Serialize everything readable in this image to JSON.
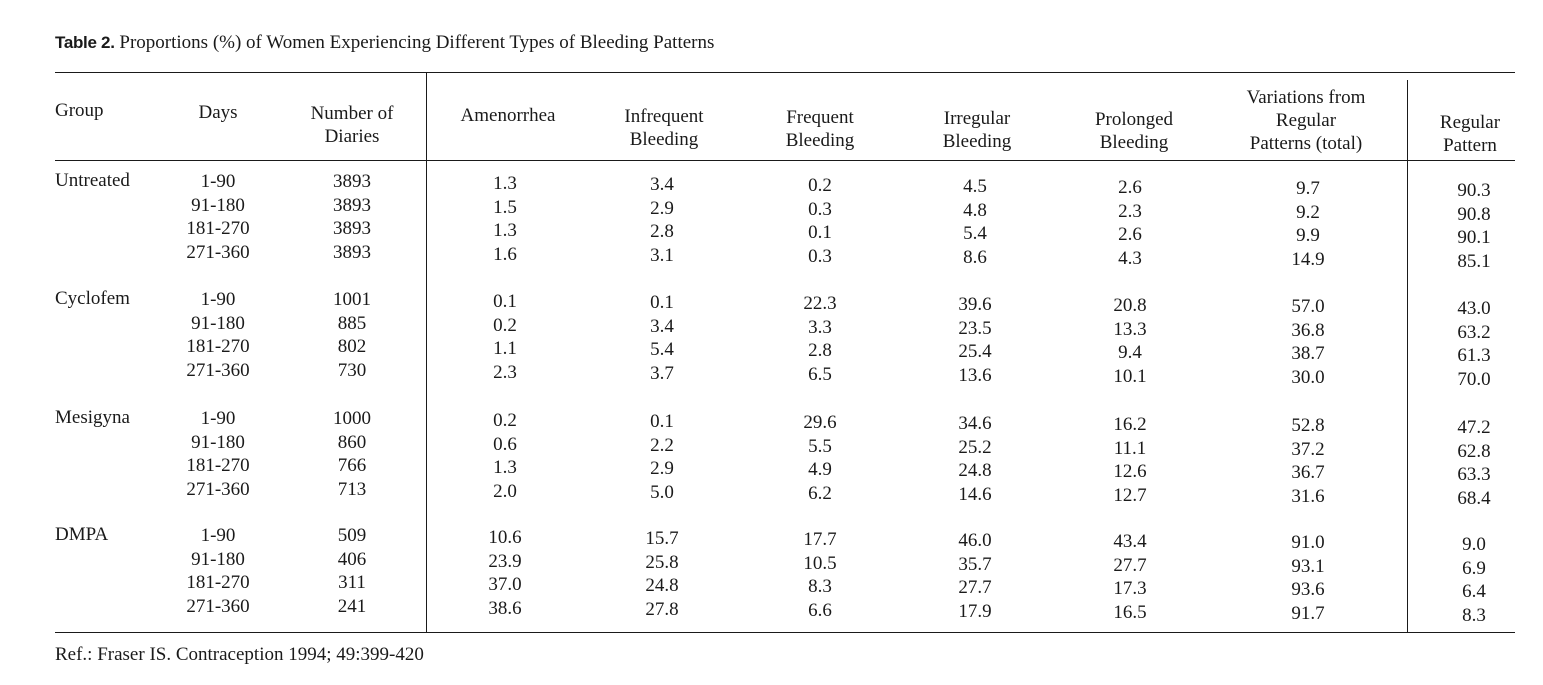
{
  "title": {
    "label": "Table 2.",
    "text": " Proportions (%) of Women Experiencing Different Types of Bleeding Patterns"
  },
  "columns": [
    {
      "key": "group",
      "label": "Group"
    },
    {
      "key": "days",
      "label": "Days"
    },
    {
      "key": "diaries",
      "label": "Number of\nDiaries"
    },
    {
      "key": "amenorrhea",
      "label": "Amenorrhea"
    },
    {
      "key": "infrequent",
      "label": "Infrequent\nBleeding"
    },
    {
      "key": "frequent",
      "label": "Frequent\nBleeding"
    },
    {
      "key": "irregular",
      "label": "Irregular\nBleeding"
    },
    {
      "key": "prolonged",
      "label": "Prolonged\nBleeding"
    },
    {
      "key": "variations",
      "label": "Variations from\nRegular\nPatterns (total)"
    },
    {
      "key": "regular",
      "label": "Regular\nPattern"
    }
  ],
  "groups": [
    {
      "name": "Untreated",
      "rows": [
        {
          "days": "1-90",
          "diaries": "3893",
          "amenorrhea": "1.3",
          "infrequent": "3.4",
          "frequent": "0.2",
          "irregular": "4.5",
          "prolonged": "2.6",
          "variations": "9.7",
          "regular": "90.3"
        },
        {
          "days": "91-180",
          "diaries": "3893",
          "amenorrhea": "1.5",
          "infrequent": "2.9",
          "frequent": "0.3",
          "irregular": "4.8",
          "prolonged": "2.3",
          "variations": "9.2",
          "regular": "90.8"
        },
        {
          "days": "181-270",
          "diaries": "3893",
          "amenorrhea": "1.3",
          "infrequent": "2.8",
          "frequent": "0.1",
          "irregular": "5.4",
          "prolonged": "2.6",
          "variations": "9.9",
          "regular": "90.1"
        },
        {
          "days": "271-360",
          "diaries": "3893",
          "amenorrhea": "1.6",
          "infrequent": "3.1",
          "frequent": "0.3",
          "irregular": "8.6",
          "prolonged": "4.3",
          "variations": "14.9",
          "regular": "85.1"
        }
      ]
    },
    {
      "name": "Cyclofem",
      "rows": [
        {
          "days": "1-90",
          "diaries": "1001",
          "amenorrhea": "0.1",
          "infrequent": "0.1",
          "frequent": "22.3",
          "irregular": "39.6",
          "prolonged": "20.8",
          "variations": "57.0",
          "regular": "43.0"
        },
        {
          "days": "91-180",
          "diaries": "885",
          "amenorrhea": "0.2",
          "infrequent": "3.4",
          "frequent": "3.3",
          "irregular": "23.5",
          "prolonged": "13.3",
          "variations": "36.8",
          "regular": "63.2"
        },
        {
          "days": "181-270",
          "diaries": "802",
          "amenorrhea": "1.1",
          "infrequent": "5.4",
          "frequent": "2.8",
          "irregular": "25.4",
          "prolonged": "9.4",
          "variations": "38.7",
          "regular": "61.3"
        },
        {
          "days": "271-360",
          "diaries": "730",
          "amenorrhea": "2.3",
          "infrequent": "3.7",
          "frequent": "6.5",
          "irregular": "13.6",
          "prolonged": "10.1",
          "variations": "30.0",
          "regular": "70.0"
        }
      ]
    },
    {
      "name": "Mesigyna",
      "rows": [
        {
          "days": "1-90",
          "diaries": "1000",
          "amenorrhea": "0.2",
          "infrequent": "0.1",
          "frequent": "29.6",
          "irregular": "34.6",
          "prolonged": "16.2",
          "variations": "52.8",
          "regular": "47.2"
        },
        {
          "days": "91-180",
          "diaries": "860",
          "amenorrhea": "0.6",
          "infrequent": "2.2",
          "frequent": "5.5",
          "irregular": "25.2",
          "prolonged": "11.1",
          "variations": "37.2",
          "regular": "62.8"
        },
        {
          "days": "181-270",
          "diaries": "766",
          "amenorrhea": "1.3",
          "infrequent": "2.9",
          "frequent": "4.9",
          "irregular": "24.8",
          "prolonged": "12.6",
          "variations": "36.7",
          "regular": "63.3"
        },
        {
          "days": "271-360",
          "diaries": "713",
          "amenorrhea": "2.0",
          "infrequent": "5.0",
          "frequent": "6.2",
          "irregular": "14.6",
          "prolonged": "12.7",
          "variations": "31.6",
          "regular": "68.4"
        }
      ]
    },
    {
      "name": "DMPA",
      "rows": [
        {
          "days": "1-90",
          "diaries": "509",
          "amenorrhea": "10.6",
          "infrequent": "15.7",
          "frequent": "17.7",
          "irregular": "46.0",
          "prolonged": "43.4",
          "variations": "91.0",
          "regular": "9.0"
        },
        {
          "days": "91-180",
          "diaries": "406",
          "amenorrhea": "23.9",
          "infrequent": "25.8",
          "frequent": "10.5",
          "irregular": "35.7",
          "prolonged": "27.7",
          "variations": "93.1",
          "regular": "6.9"
        },
        {
          "days": "181-270",
          "diaries": "311",
          "amenorrhea": "37.0",
          "infrequent": "24.8",
          "frequent": "8.3",
          "irregular": "27.7",
          "prolonged": "17.3",
          "variations": "93.6",
          "regular": "6.4"
        },
        {
          "days": "271-360",
          "diaries": "241",
          "amenorrhea": "38.6",
          "infrequent": "27.8",
          "frequent": "6.6",
          "irregular": "17.9",
          "prolonged": "16.5",
          "variations": "91.7",
          "regular": "8.3"
        }
      ]
    }
  ],
  "reference": "Ref.: Fraser IS. Contraception 1994; 49:399-420"
}
